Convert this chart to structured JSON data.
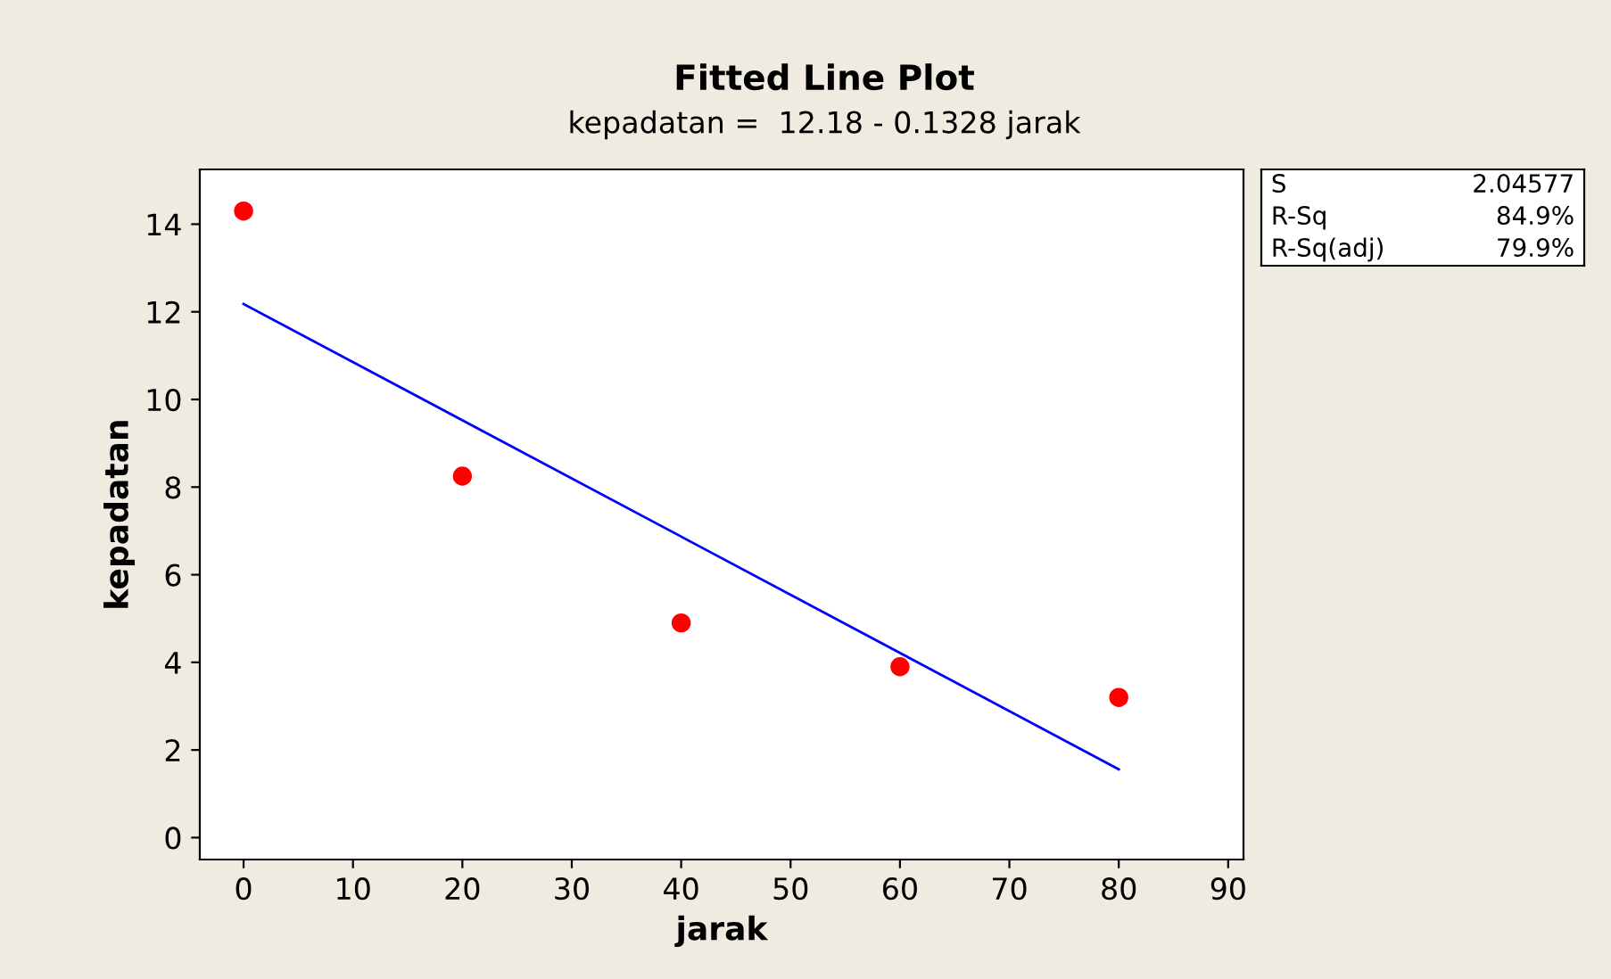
{
  "chart_data": {
    "type": "scatter",
    "title": "Fitted Line Plot",
    "subtitle": "kepadatan =  12.18 - 0.1328 jarak",
    "xlabel": "jarak",
    "ylabel": "kepadatan",
    "xlim": [
      -4,
      91.4
    ],
    "ylim": [
      -0.5,
      15.25
    ],
    "xticks": [
      0,
      10,
      20,
      30,
      40,
      50,
      60,
      70,
      80,
      90
    ],
    "yticks": [
      0,
      2,
      4,
      6,
      8,
      10,
      12,
      14
    ],
    "x": [
      0,
      20,
      40,
      60,
      80
    ],
    "series": [
      {
        "color": "#ff0000",
        "marker": "circle",
        "values": [
          14.3,
          8.25,
          4.9,
          3.9,
          3.2
        ]
      },
      {
        "type": "line",
        "color": "#0000ff",
        "x": [
          0,
          80
        ],
        "values": [
          12.18,
          1.56
        ]
      }
    ],
    "annotations": [
      "S",
      "2.04577",
      "R-Sq",
      "84.9%",
      "R-Sq(adj)",
      "79.9%"
    ],
    "grid": false,
    "legend": false
  }
}
